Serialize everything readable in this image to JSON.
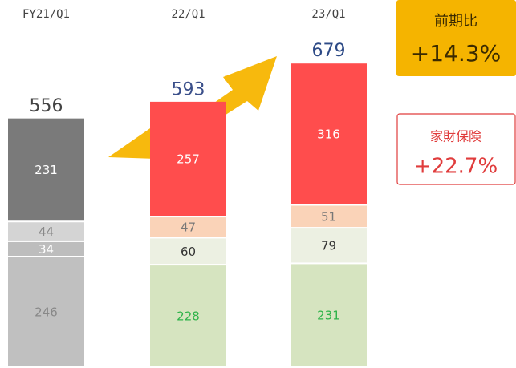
{
  "chart_data": {
    "type": "stacked_bar",
    "categories": [
      "FY21/Q1",
      "22/Q1",
      "23/Q1"
    ],
    "totals": {
      "values": [
        556,
        593,
        679
      ],
      "colors": [
        "#444444",
        "#3a4f8a",
        "#2d4a86"
      ]
    },
    "series": [
      {
        "colors": [
          "#c0c0c0",
          "#d6e4c0",
          "#d6e4c0"
        ],
        "label_colors": [
          "#888888",
          "#2fb34a",
          "#2fb34a"
        ],
        "values": [
          246,
          228,
          231
        ]
      },
      {
        "colors": [
          "#bdbdbd",
          "#ecf0e2",
          "#ecf0e2"
        ],
        "label_colors": [
          "#ffffff",
          "#333333",
          "#333333"
        ],
        "values": [
          34,
          60,
          79
        ]
      },
      {
        "colors": [
          "#d4d4d4",
          "#fad3b8",
          "#fad3b8"
        ],
        "label_colors": [
          "#888888",
          "#777777",
          "#777777"
        ],
        "values": [
          44,
          47,
          51
        ]
      },
      {
        "colors": [
          "#7a7a7a",
          "#ff4d4d",
          "#ff4d4d"
        ],
        "label_colors": [
          "#ffffff",
          "#ffffff",
          "#ffffff"
        ],
        "values": [
          231,
          257,
          316
        ]
      }
    ],
    "annotations": [
      {
        "label": "前期比",
        "value": "+14.3%"
      },
      {
        "label": "家財保険",
        "value": "+22.7%"
      }
    ]
  }
}
